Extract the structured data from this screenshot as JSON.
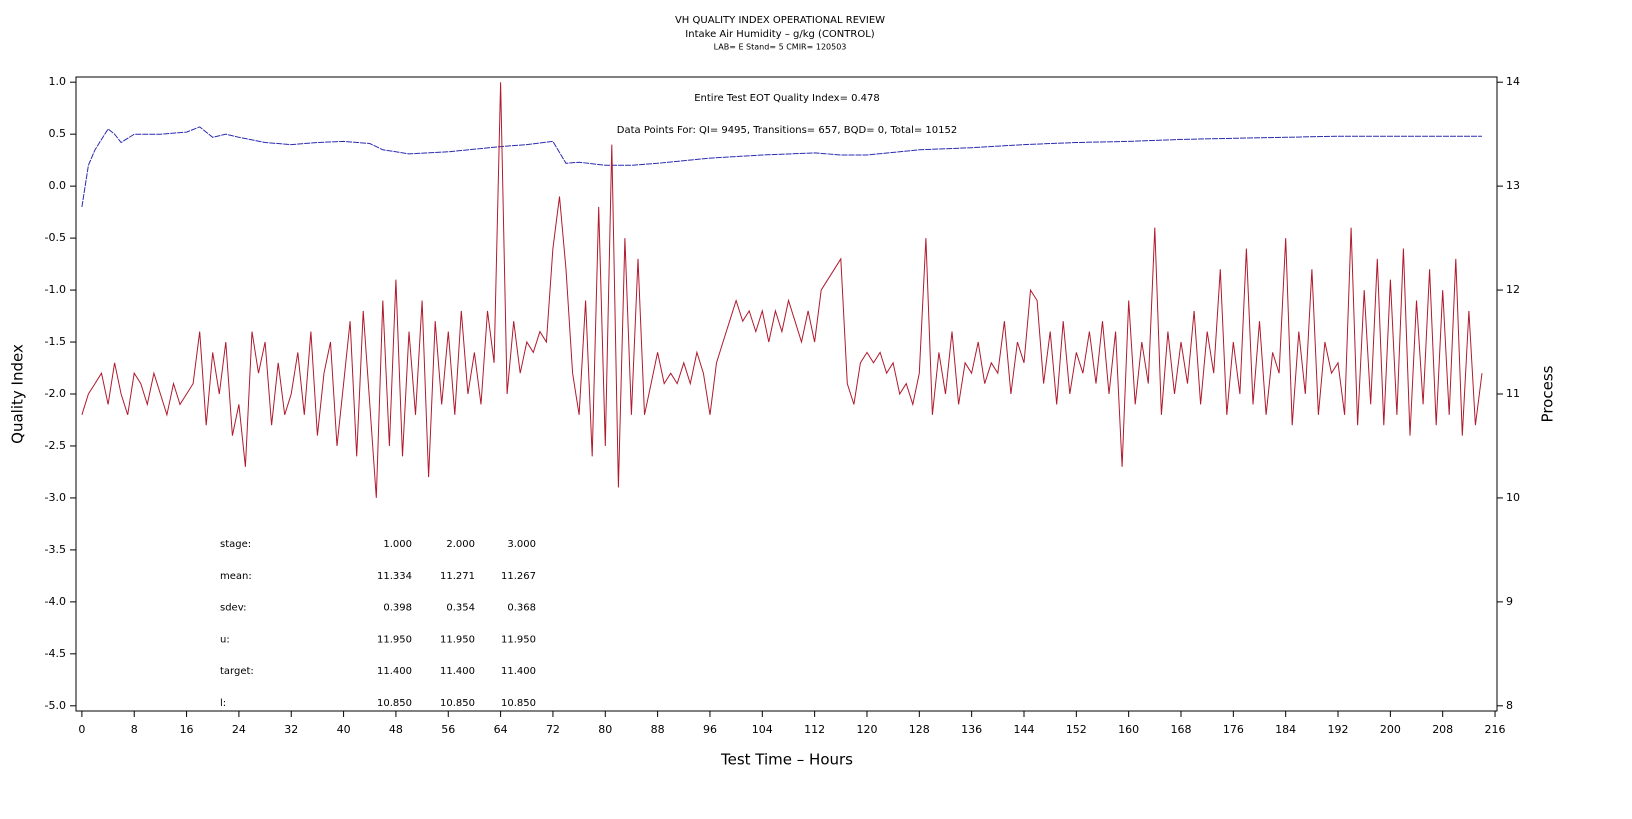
{
  "chart_data": {
    "type": "line",
    "title": "VH QUALITY INDEX OPERATIONAL REVIEW",
    "subtitle": "Intake Air Humidity – g/kg (CONTROL)",
    "subtitle2": "LAB= E Stand= 5 CMIR= 120503",
    "x_label": "Test Time – Hours",
    "y_label": "Quality Index",
    "y2_label": "Process",
    "annotations": [
      "Entire Test EOT Quality Index=   0.478",
      "Data Points For: QI=  9495, Transitions=   657, BQD=     0, Total= 10152"
    ],
    "xlim": [
      -0.9,
      216.3
    ],
    "xticks": [
      0,
      8,
      16,
      24,
      32,
      40,
      48,
      56,
      64,
      72,
      80,
      88,
      96,
      104,
      112,
      120,
      128,
      136,
      144,
      152,
      160,
      168,
      176,
      184,
      192,
      200,
      208,
      216
    ],
    "ylim": [
      -5.05,
      1.05
    ],
    "yticks": [
      {
        "value": 1,
        "label": "1.0"
      },
      0.5,
      {
        "value": 0,
        "label": "0.0"
      },
      -0.5,
      {
        "value": -1,
        "label": "-1.0"
      },
      -1.5,
      {
        "value": -2,
        "label": "-2.0"
      },
      -2.5,
      {
        "value": -3,
        "label": "-3.0"
      },
      -3.5,
      {
        "value": -4,
        "label": "-4.0"
      },
      -4.5,
      {
        "value": -5,
        "label": "-5.0"
      }
    ],
    "y2lim": [
      7.95,
      14.05
    ],
    "y2ticks": [
      8,
      9,
      10,
      11,
      12,
      13,
      14
    ],
    "series": [
      {
        "name": "Quality Index",
        "color": "#2b2bb0",
        "axis": "y",
        "x": [
          0,
          1,
          2,
          3,
          4,
          5,
          6,
          8,
          12,
          16,
          18,
          20,
          22,
          24,
          28,
          32,
          36,
          40,
          44,
          46,
          48,
          50,
          56,
          64,
          68,
          72,
          74,
          76,
          80,
          84,
          88,
          96,
          104,
          112,
          116,
          120,
          128,
          136,
          144,
          152,
          160,
          168,
          176,
          184,
          192,
          200,
          208,
          214
        ],
        "values": [
          -0.2,
          0.2,
          0.35,
          0.45,
          0.55,
          0.5,
          0.42,
          0.5,
          0.5,
          0.52,
          0.57,
          0.47,
          0.5,
          0.47,
          0.42,
          0.4,
          0.42,
          0.43,
          0.41,
          0.35,
          0.33,
          0.31,
          0.33,
          0.38,
          0.4,
          0.43,
          0.22,
          0.23,
          0.2,
          0.2,
          0.22,
          0.27,
          0.3,
          0.32,
          0.3,
          0.3,
          0.35,
          0.37,
          0.4,
          0.42,
          0.43,
          0.45,
          0.46,
          0.47,
          0.48,
          0.48,
          0.48,
          0.48
        ]
      },
      {
        "name": "Process",
        "color": "#b01a2e",
        "axis": "y2",
        "x": [
          0,
          1,
          2,
          3,
          4,
          5,
          6,
          7,
          8,
          9,
          10,
          11,
          12,
          13,
          14,
          15,
          16,
          17,
          18,
          19,
          20,
          21,
          22,
          23,
          24,
          25,
          26,
          27,
          28,
          29,
          30,
          31,
          32,
          33,
          34,
          35,
          36,
          37,
          38,
          39,
          40,
          41,
          42,
          43,
          44,
          45,
          46,
          47,
          48,
          49,
          50,
          51,
          52,
          53,
          54,
          55,
          56,
          57,
          58,
          59,
          60,
          61,
          62,
          63,
          64,
          65,
          66,
          67,
          68,
          69,
          70,
          71,
          72,
          73,
          74,
          75,
          76,
          77,
          78,
          79,
          80,
          81,
          82,
          83,
          84,
          85,
          86,
          87,
          88,
          89,
          90,
          91,
          92,
          93,
          94,
          95,
          96,
          97,
          98,
          99,
          100,
          101,
          102,
          103,
          104,
          105,
          106,
          107,
          108,
          109,
          110,
          111,
          112,
          113,
          114,
          115,
          116,
          117,
          118,
          119,
          120,
          121,
          122,
          123,
          124,
          125,
          126,
          127,
          128,
          129,
          130,
          131,
          132,
          133,
          134,
          135,
          136,
          137,
          138,
          139,
          140,
          141,
          142,
          143,
          144,
          145,
          146,
          147,
          148,
          149,
          150,
          151,
          152,
          153,
          154,
          155,
          156,
          157,
          158,
          159,
          160,
          161,
          162,
          163,
          164,
          165,
          166,
          167,
          168,
          169,
          170,
          171,
          172,
          173,
          174,
          175,
          176,
          177,
          178,
          179,
          180,
          181,
          182,
          183,
          184,
          185,
          186,
          187,
          188,
          189,
          190,
          191,
          192,
          193,
          194,
          195,
          196,
          197,
          198,
          199,
          200,
          201,
          202,
          203,
          204,
          205,
          206,
          207,
          208,
          209,
          210,
          211,
          212,
          213,
          214
        ],
        "values": [
          10.8,
          11.0,
          11.1,
          11.2,
          10.9,
          11.3,
          11.0,
          10.8,
          11.2,
          11.1,
          10.9,
          11.2,
          11.0,
          10.8,
          11.1,
          10.9,
          11.0,
          11.1,
          11.6,
          10.7,
          11.4,
          11.0,
          11.5,
          10.6,
          10.9,
          10.3,
          11.6,
          11.2,
          11.5,
          10.7,
          11.3,
          10.8,
          11.0,
          11.4,
          10.8,
          11.6,
          10.6,
          11.2,
          11.5,
          10.5,
          11.1,
          11.7,
          10.4,
          11.8,
          10.9,
          10.0,
          11.9,
          10.5,
          12.1,
          10.4,
          11.6,
          10.8,
          11.9,
          10.2,
          11.7,
          10.9,
          11.6,
          10.8,
          11.8,
          11.0,
          11.4,
          10.9,
          11.8,
          11.3,
          14.0,
          11.0,
          11.7,
          11.2,
          11.5,
          11.4,
          11.6,
          11.5,
          12.4,
          12.9,
          12.2,
          11.2,
          10.8,
          11.9,
          10.4,
          12.8,
          10.5,
          13.4,
          10.1,
          12.5,
          10.8,
          12.3,
          10.8,
          11.1,
          11.4,
          11.1,
          11.2,
          11.1,
          11.3,
          11.1,
          11.4,
          11.2,
          10.8,
          11.3,
          11.5,
          11.7,
          11.9,
          11.7,
          11.8,
          11.6,
          11.8,
          11.5,
          11.8,
          11.6,
          11.9,
          11.7,
          11.5,
          11.8,
          11.5,
          12.0,
          12.1,
          12.2,
          12.3,
          11.1,
          10.9,
          11.3,
          11.4,
          11.3,
          11.4,
          11.2,
          11.3,
          11.0,
          11.1,
          10.9,
          11.2,
          12.5,
          10.8,
          11.4,
          11.0,
          11.6,
          10.9,
          11.3,
          11.2,
          11.5,
          11.1,
          11.3,
          11.2,
          11.7,
          11.0,
          11.5,
          11.3,
          12.0,
          11.9,
          11.1,
          11.6,
          10.9,
          11.7,
          11.0,
          11.4,
          11.2,
          11.6,
          11.1,
          11.7,
          11.0,
          11.6,
          10.3,
          11.9,
          10.9,
          11.5,
          11.1,
          12.6,
          10.8,
          11.6,
          11.0,
          11.5,
          11.1,
          11.8,
          10.9,
          11.6,
          11.2,
          12.2,
          10.8,
          11.5,
          11.0,
          12.4,
          10.9,
          11.7,
          10.8,
          11.4,
          11.2,
          12.5,
          10.7,
          11.6,
          11.0,
          12.2,
          10.8,
          11.5,
          11.2,
          11.3,
          10.8,
          12.6,
          10.7,
          12.0,
          10.9,
          12.3,
          10.7,
          12.1,
          10.8,
          12.4,
          10.6,
          11.9,
          10.9,
          12.2,
          10.7,
          12.0,
          10.8,
          12.3,
          10.6,
          11.8,
          10.7,
          11.2
        ]
      }
    ],
    "stats_table": [
      [
        "stage:",
        "1.000",
        "2.000",
        "3.000"
      ],
      [
        "mean:",
        "11.334",
        "11.271",
        "11.267"
      ],
      [
        "sdev:",
        "0.398",
        "0.354",
        "0.368"
      ],
      [
        "u:",
        "11.950",
        "11.950",
        "11.950"
      ],
      [
        "target:",
        "11.400",
        "11.400",
        "11.400"
      ],
      [
        "l:",
        "10.850",
        "10.850",
        "10.850"
      ]
    ]
  }
}
